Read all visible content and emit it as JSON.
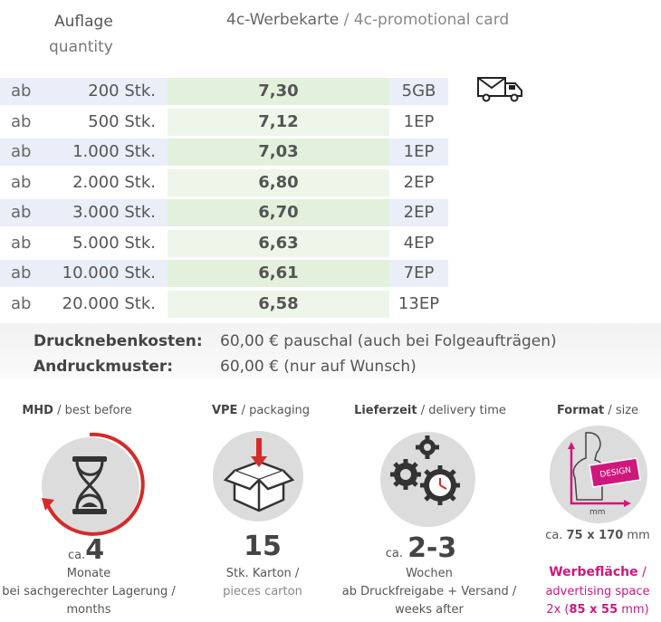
{
  "header": {
    "quantity_de": "Auflage",
    "quantity_en": "quantity",
    "card_de": "4c-Werbekarte",
    "card_sep": " / ",
    "card_en": "4c-promotional card"
  },
  "table": {
    "rows": [
      {
        "ab": "ab",
        "qty": "200 Stk.",
        "price": "7,30",
        "code": "5GB"
      },
      {
        "ab": "ab",
        "qty": "500 Stk.",
        "price": "7,12",
        "code": "1EP"
      },
      {
        "ab": "ab",
        "qty": "1.000 Stk.",
        "price": "7,03",
        "code": "1EP"
      },
      {
        "ab": "ab",
        "qty": "2.000 Stk.",
        "price": "6,80",
        "code": "2EP"
      },
      {
        "ab": "ab",
        "qty": "3.000 Stk.",
        "price": "6,70",
        "code": "2EP"
      },
      {
        "ab": "ab",
        "qty": "5.000 Stk.",
        "price": "6,63",
        "code": "4EP"
      },
      {
        "ab": "ab",
        "qty": "10.000 Stk.",
        "price": "6,61",
        "code": "7EP"
      },
      {
        "ab": "ab",
        "qty": "20.000 Stk.",
        "price": "6,58",
        "code": "13EP"
      }
    ],
    "shipping_icon": "mail-truck-icon"
  },
  "extras": {
    "setup_label": "Drucknebenkosten:",
    "setup_value": "60,00 € pauschal (auch bei Folgeaufträgen)",
    "proof_label": "Andruckmuster:",
    "proof_value": "60,00 € (nur auf Wunsch)"
  },
  "features": {
    "mhd": {
      "title_bold": "MHD",
      "title_rest": " / best before",
      "icon": "hourglass-icon",
      "ca": "ca.",
      "value": "4",
      "unit": "Monate",
      "note_de": "bei sachgerechter Lagerung /",
      "note_en": "months"
    },
    "vpe": {
      "title_bold": "VPE",
      "title_rest": " / packaging",
      "icon": "box-icon",
      "value": "15",
      "unit": "Stk. Karton /",
      "note_en": "pieces carton"
    },
    "delivery": {
      "title_bold": "Lieferzeit",
      "title_rest": " / delivery time",
      "icon": "gears-clock-icon",
      "ca": "ca.",
      "value": "2-3",
      "unit": "Wochen",
      "note_de": "ab Druckfreigabe + Versand /",
      "note_en": "weeks after"
    },
    "format": {
      "title_bold": "Format",
      "title_rest": " / size",
      "icon": "format-design-icon",
      "design_label": "DESIGN",
      "mm_label": "mm",
      "size_prefix": "ca. ",
      "size_value": "75 x 170",
      "size_suffix": " mm",
      "ad_label": "Werbefläche",
      "ad_sep": " /",
      "ad_en": "advertising space",
      "ad_count_prefix": "2x (",
      "ad_count_value": "85 x 55",
      "ad_count_suffix": " mm)"
    }
  },
  "colors": {
    "row_blue": "#e9eef8",
    "row_green": "#e3f0dc",
    "row_white": "#ffffff",
    "row_green_light": "#eef6e9",
    "accent_red": "#d52b2b",
    "accent_pink": "#d0177c"
  }
}
